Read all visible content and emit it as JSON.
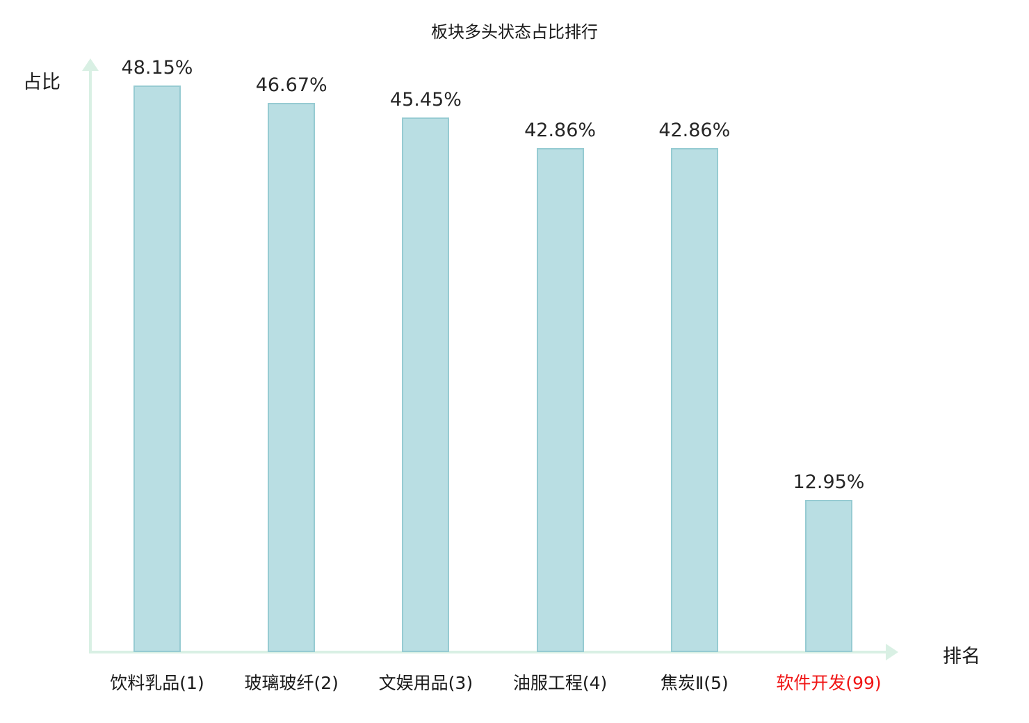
{
  "chart_data": {
    "type": "bar",
    "title": "板块多头状态占比排行",
    "xlabel": "排名",
    "ylabel": "占比",
    "categories": [
      "饮料乳品(1)",
      "玻璃玻纤(2)",
      "文娱用品(3)",
      "油服工程(4)",
      "焦炭Ⅱ(5)",
      "软件开发(99)"
    ],
    "values": [
      48.15,
      46.67,
      45.45,
      42.86,
      42.86,
      12.95
    ],
    "value_labels": [
      "48.15%",
      "46.67%",
      "45.45%",
      "42.86%",
      "42.86%",
      "12.95%"
    ],
    "category_label_colors": [
      "#1a1a1a",
      "#1a1a1a",
      "#1a1a1a",
      "#1a1a1a",
      "#1a1a1a",
      "#f01515"
    ],
    "highlight_category": "软件开发(99)",
    "highlight_color": "#f01515",
    "bar_fill": "#b9dee3",
    "bar_border": "#96cbd2",
    "axis_color": "#d9f0e4",
    "ylim": [
      0,
      50
    ],
    "grid": false,
    "legend": "none"
  }
}
